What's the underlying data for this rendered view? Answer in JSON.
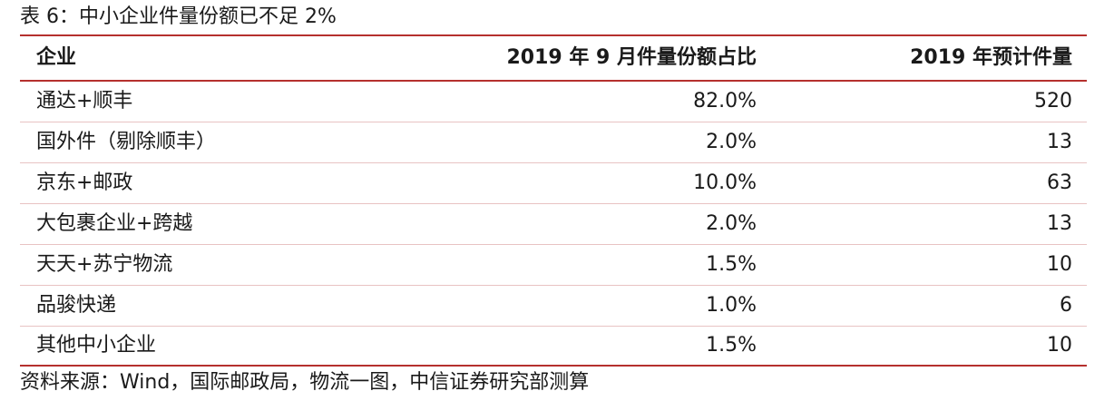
{
  "caption": "表 6：中小企业件量份额已不足 2%",
  "table": {
    "headers": [
      "企业",
      "2019 年 9 月件量份额占比",
      "2019 年预计件量"
    ],
    "rows": [
      {
        "company": "通达+顺丰",
        "share": "82.0%",
        "volume": "520"
      },
      {
        "company": "国外件（剔除顺丰）",
        "share": "2.0%",
        "volume": "13"
      },
      {
        "company": "京东+邮政",
        "share": "10.0%",
        "volume": "63"
      },
      {
        "company": "大包裹企业+跨越",
        "share": "2.0%",
        "volume": "13"
      },
      {
        "company": "天天+苏宁物流",
        "share": "1.5%",
        "volume": "10"
      },
      {
        "company": "品骏快递",
        "share": "1.0%",
        "volume": "6"
      },
      {
        "company": "其他中小企业",
        "share": "1.5%",
        "volume": "10"
      }
    ]
  },
  "source": "资料来源：Wind，国际邮政局，物流一图，中信证券研究部测算",
  "colors": {
    "rule": "#b5302e",
    "row_separator": "#e8c3c3",
    "text": "#1a1a1a"
  }
}
